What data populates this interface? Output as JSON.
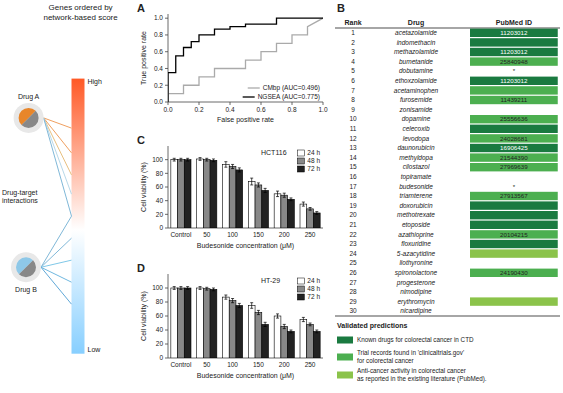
{
  "chart_data": [
    {
      "type": "diagram",
      "title": "Genes ordered by\nnetwork-based score",
      "annotations": [
        "High",
        "Low",
        "Drug A",
        "Drug B",
        "Drug-target\ninteractions"
      ]
    },
    {
      "type": "line",
      "annotations": [
        "A"
      ],
      "x_label": "False positive rate",
      "y_label": "True positive rate",
      "xlim": [
        0,
        1.0
      ],
      "ylim": [
        0,
        1.05
      ],
      "xticks": [
        {
          "value": 0.0,
          "label": "0.0"
        },
        0.2,
        0.4,
        0.6,
        0.8,
        {
          "value": 1.0,
          "label": "1.0"
        }
      ],
      "yticks": [
        {
          "value": 0.0,
          "label": "0.0"
        },
        0.2,
        0.4,
        0.6,
        0.8,
        {
          "value": 1.0,
          "label": "1.0"
        }
      ],
      "legend": "lower right",
      "series": [
        {
          "name": "CMbp (AUC=0.496)",
          "color": "#aaaaaa",
          "x": [
            0,
            0.0,
            0.1,
            0.1,
            0.2,
            0.2,
            0.3,
            0.3,
            0.5,
            0.5,
            0.6,
            0.6,
            0.7,
            0.7,
            0.8,
            0.8,
            0.9,
            0.9,
            1.0
          ],
          "values": [
            0,
            0.1,
            0.1,
            0.2,
            0.2,
            0.3,
            0.3,
            0.4,
            0.4,
            0.5,
            0.5,
            0.6,
            0.6,
            0.7,
            0.7,
            0.8,
            0.8,
            0.9,
            1.0
          ]
        },
        {
          "name": "NGSEA (AUC=0.775)",
          "color": "#000000",
          "x": [
            0,
            0.0,
            0.05,
            0.05,
            0.1,
            0.1,
            0.15,
            0.15,
            0.2,
            0.2,
            0.3,
            0.3,
            0.4,
            0.4,
            0.5,
            0.5,
            0.7,
            0.7,
            1.0
          ],
          "values": [
            0,
            0.35,
            0.35,
            0.55,
            0.55,
            0.65,
            0.65,
            0.72,
            0.72,
            0.8,
            0.8,
            0.87,
            0.87,
            0.9,
            0.9,
            0.93,
            0.93,
            1.0,
            1.0
          ]
        }
      ]
    },
    {
      "type": "bar",
      "title": "HCT116",
      "annotations": [
        "C"
      ],
      "x_label": "Budesonide concentration (μM)",
      "y_label": "Cell viability (%)",
      "categories": [
        "Control",
        "50",
        "100",
        "150",
        "200",
        "250"
      ],
      "ylim": [
        0,
        120
      ],
      "yticks": [
        0,
        20,
        40,
        60,
        80,
        100
      ],
      "legend": "upper right",
      "series": [
        {
          "name": "24 h",
          "color": "#ffffff",
          "values": [
            100,
            101,
            93,
            68,
            50,
            35
          ],
          "errors": [
            2,
            2,
            4,
            5,
            4,
            3
          ]
        },
        {
          "name": "48 h",
          "color": "#888888",
          "values": [
            100,
            100,
            90,
            63,
            48,
            28
          ],
          "errors": [
            2,
            2,
            3,
            3,
            3,
            2
          ]
        },
        {
          "name": "72 h",
          "color": "#222222",
          "values": [
            100,
            99,
            85,
            55,
            42,
            22
          ],
          "errors": [
            2,
            2,
            3,
            3,
            2,
            2
          ]
        }
      ]
    },
    {
      "type": "bar",
      "title": "HT-29",
      "annotations": [
        "D"
      ],
      "x_label": "Budesonide concentration (μM)",
      "y_label": "Cell viability (%)",
      "categories": [
        "Control",
        "50",
        "100",
        "150",
        "200",
        "250"
      ],
      "ylim": [
        0,
        120
      ],
      "yticks": [
        0,
        20,
        40,
        60,
        80,
        100
      ],
      "legend": "upper right",
      "series": [
        {
          "name": "24 h",
          "color": "#ffffff",
          "values": [
            100,
            100,
            87,
            75,
            60,
            55
          ],
          "errors": [
            2,
            2,
            3,
            4,
            3,
            3
          ]
        },
        {
          "name": "48 h",
          "color": "#888888",
          "values": [
            100,
            99,
            82,
            65,
            45,
            48
          ],
          "errors": [
            2,
            2,
            3,
            3,
            3,
            2
          ]
        },
        {
          "name": "72 h",
          "color": "#222222",
          "values": [
            100,
            98,
            75,
            48,
            38,
            38
          ],
          "errors": [
            2,
            2,
            3,
            3,
            2,
            2
          ]
        }
      ]
    },
    {
      "type": "table",
      "annotations": [
        "B"
      ],
      "columns": [
        "Rank",
        "Drug",
        "PubMed ID"
      ],
      "rank": [
        1,
        2,
        3,
        4,
        5,
        6,
        7,
        8,
        9,
        10,
        11,
        12,
        13,
        14,
        15,
        16,
        17,
        18,
        19,
        20,
        21,
        22,
        23,
        24,
        25,
        26,
        27,
        28,
        29,
        30
      ],
      "drugs": [
        "acetazolamide",
        "indomethacin",
        "methazolamide",
        "bumetanide",
        "dobutamine",
        "ethoxzolamide",
        "acetaminophen",
        "furosemide",
        "zonisamide",
        "dopamine",
        "celecoxib",
        "levodopa",
        "daunorubicin",
        "methyldopa",
        "cilostazol",
        "topiramate",
        "budesonide",
        "triamterene",
        "doxorubicin",
        "methotrexate",
        "etoposide",
        "azathioprine",
        "floxuridine",
        "5-azacytidine",
        "liothyronine",
        "spironolactone",
        "progesterone",
        "nimodipine",
        "erythromycin",
        "nicardipine"
      ],
      "pubmed_ids": [
        "11203012",
        null,
        "11203012",
        "25840948",
        "*",
        "11203012",
        null,
        "11439211",
        null,
        "25556636",
        null,
        "24028681",
        "16906425",
        "21544390",
        "27969639",
        null,
        "*",
        "27913567",
        null,
        null,
        null,
        "20104215",
        null,
        null,
        null,
        "24190430",
        null,
        null,
        null,
        null
      ],
      "colors": [
        "#1a7a40",
        "#1a7a40",
        "#1a7a40",
        "#4caf50",
        "#ffffff",
        "#1a7a40",
        "#4caf50",
        "#4caf50",
        "#ffffff",
        "#4caf50",
        "#1a7a40",
        "#4caf50",
        "#1a7a40",
        "#4caf50",
        "#4caf50",
        "#ffffff",
        "#ffffff",
        "#4caf50",
        "#1a7a40",
        "#1a7a40",
        "#1a7a40",
        "#4caf50",
        "#1a7a40",
        "#8bc34a",
        "#ffffff",
        "#4caf50",
        "#ffffff",
        "#ffffff",
        "#8bc34a",
        "#ffffff"
      ],
      "legend_title": "Validated predictions",
      "legend_items": [
        {
          "name": "Known drugs for colorectal cancer in CTD",
          "color": "#1a7a40"
        },
        {
          "name": "Trial records found in 'clinicaltrials.gov'\nfor colorectal cancer",
          "color": "#4caf50"
        },
        {
          "name": "Anti-cancer activity in colorectal cancer\nas reported in the existing literature (PubMed).",
          "color": "#8bc34a"
        }
      ]
    }
  ]
}
